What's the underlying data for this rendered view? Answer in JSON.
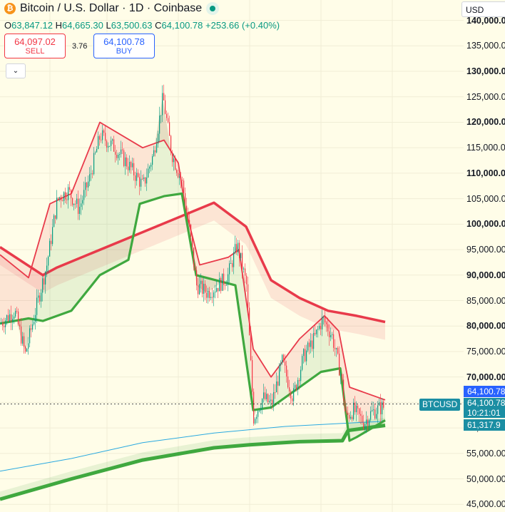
{
  "header": {
    "title": "Bitcoin / U.S. Dollar · 1D · Coinbase",
    "logo_glyph": "₿",
    "ohlc": {
      "o_label": "O",
      "o": "63,847.12",
      "h_label": "H",
      "h": "64,665.30",
      "l_label": "L",
      "l": "63,500.63",
      "c_label": "C",
      "c": "64,100.78",
      "change": "+253.66 (+0.40%)"
    },
    "sell": {
      "price": "64,097.02",
      "label": "SELL"
    },
    "buy": {
      "price": "64,100.78",
      "label": "BUY"
    },
    "spread": "3.76",
    "toggle_glyph": "⌄"
  },
  "currency": "USD",
  "price_tags": {
    "symbol": "BTCUSD",
    "last_price": "64,100.78",
    "close_price": "64,100.78",
    "countdown": "10:21:01",
    "lower_band": "61,317.9"
  },
  "colors": {
    "up": "#089981",
    "down": "#f23645",
    "upper_band": "#e83a4a",
    "lower_band": "#3fa83f",
    "ma_line": "#29a9e0",
    "tag_blue": "#2962ff",
    "tag_teal": "#1b8ea3",
    "background": "#fffde8"
  },
  "chart_data": {
    "type": "candlestick",
    "title": "Bitcoin / U.S. Dollar · 1D · Coinbase",
    "y_tick_labels": [
      "140,000.00",
      "135,000.00",
      "130,000.00",
      "125,000.00",
      "120,000.00",
      "115,000.00",
      "110,000.00",
      "105,000.00",
      "100,000.00",
      "95,000.00",
      "90,000.00",
      "85,000.00",
      "80,000.00",
      "75,000.00",
      "70,000.00",
      "65,000.00",
      "60,000.00",
      "55,000.00",
      "50,000.00",
      "45,000.00"
    ],
    "y_ticks": [
      140000,
      135000,
      130000,
      125000,
      120000,
      115000,
      110000,
      105000,
      100000,
      95000,
      90000,
      85000,
      80000,
      75000,
      70000,
      65000,
      60000,
      55000,
      50000,
      45000
    ],
    "ylim": [
      43500,
      144000
    ],
    "major_ticks": [
      140000,
      130000,
      120000,
      110000,
      100000,
      90000,
      80000,
      70000
    ],
    "grid": true,
    "price_path": [
      [
        0,
        80500
      ],
      [
        20,
        83000
      ],
      [
        35,
        74500
      ],
      [
        50,
        83500
      ],
      [
        65,
        92000
      ],
      [
        80,
        105000
      ],
      [
        95,
        106500
      ],
      [
        110,
        103000
      ],
      [
        125,
        109000
      ],
      [
        140,
        117500
      ],
      [
        160,
        115000
      ],
      [
        180,
        111500
      ],
      [
        200,
        107500
      ],
      [
        215,
        114000
      ],
      [
        228,
        125000
      ],
      [
        240,
        114000
      ],
      [
        255,
        108000
      ],
      [
        265,
        99000
      ],
      [
        275,
        88000
      ],
      [
        290,
        86500
      ],
      [
        305,
        88000
      ],
      [
        318,
        89500
      ],
      [
        332,
        96000
      ],
      [
        345,
        88000
      ],
      [
        355,
        62000
      ],
      [
        368,
        66000
      ],
      [
        380,
        64500
      ],
      [
        395,
        73000
      ],
      [
        410,
        66000
      ],
      [
        425,
        74000
      ],
      [
        440,
        77500
      ],
      [
        452,
        81500
      ],
      [
        465,
        78000
      ],
      [
        478,
        70000
      ],
      [
        484,
        62000
      ],
      [
        495,
        63500
      ],
      [
        510,
        61000
      ],
      [
        520,
        63000
      ],
      [
        535,
        64100
      ]
    ],
    "upper_band": [
      [
        0,
        94000
      ],
      [
        40,
        89500
      ],
      [
        70,
        104000
      ],
      [
        100,
        106000
      ],
      [
        140,
        120000
      ],
      [
        200,
        115000
      ],
      [
        230,
        116500
      ],
      [
        250,
        112000
      ],
      [
        260,
        103000
      ],
      [
        280,
        92000
      ],
      [
        320,
        93500
      ],
      [
        335,
        95000
      ],
      [
        355,
        75500
      ],
      [
        380,
        70000
      ],
      [
        420,
        77500
      ],
      [
        455,
        82000
      ],
      [
        475,
        79000
      ],
      [
        490,
        68000
      ],
      [
        540,
        65500
      ]
    ],
    "lower_band": [
      [
        0,
        80500
      ],
      [
        40,
        81500
      ],
      [
        60,
        81000
      ],
      [
        100,
        83000
      ],
      [
        140,
        90000
      ],
      [
        180,
        93000
      ],
      [
        196,
        104000
      ],
      [
        230,
        105500
      ],
      [
        255,
        106000
      ],
      [
        275,
        90000
      ],
      [
        330,
        88000
      ],
      [
        355,
        63500
      ],
      [
        380,
        64000
      ],
      [
        420,
        68000
      ],
      [
        450,
        71000
      ],
      [
        477,
        71700
      ],
      [
        490,
        57500
      ],
      [
        500,
        58200
      ],
      [
        540,
        61500
      ]
    ],
    "outer_upper": [
      [
        0,
        95500
      ],
      [
        60,
        90000
      ],
      [
        80,
        91500
      ],
      [
        300,
        104200
      ],
      [
        345,
        99500
      ],
      [
        380,
        89000
      ],
      [
        420,
        85500
      ],
      [
        460,
        83000
      ],
      [
        500,
        82000
      ],
      [
        540,
        80800
      ]
    ],
    "long_support": [
      [
        0,
        46000
      ],
      [
        100,
        50000
      ],
      [
        200,
        53700
      ],
      [
        300,
        56100
      ],
      [
        350,
        56700
      ],
      [
        420,
        57300
      ],
      [
        480,
        57500
      ],
      [
        488,
        59500
      ],
      [
        540,
        60500
      ]
    ],
    "ma_line": [
      [
        0,
        51500
      ],
      [
        100,
        54000
      ],
      [
        200,
        57100
      ],
      [
        300,
        59000
      ],
      [
        400,
        60300
      ],
      [
        480,
        60900
      ],
      [
        540,
        61300
      ]
    ]
  }
}
